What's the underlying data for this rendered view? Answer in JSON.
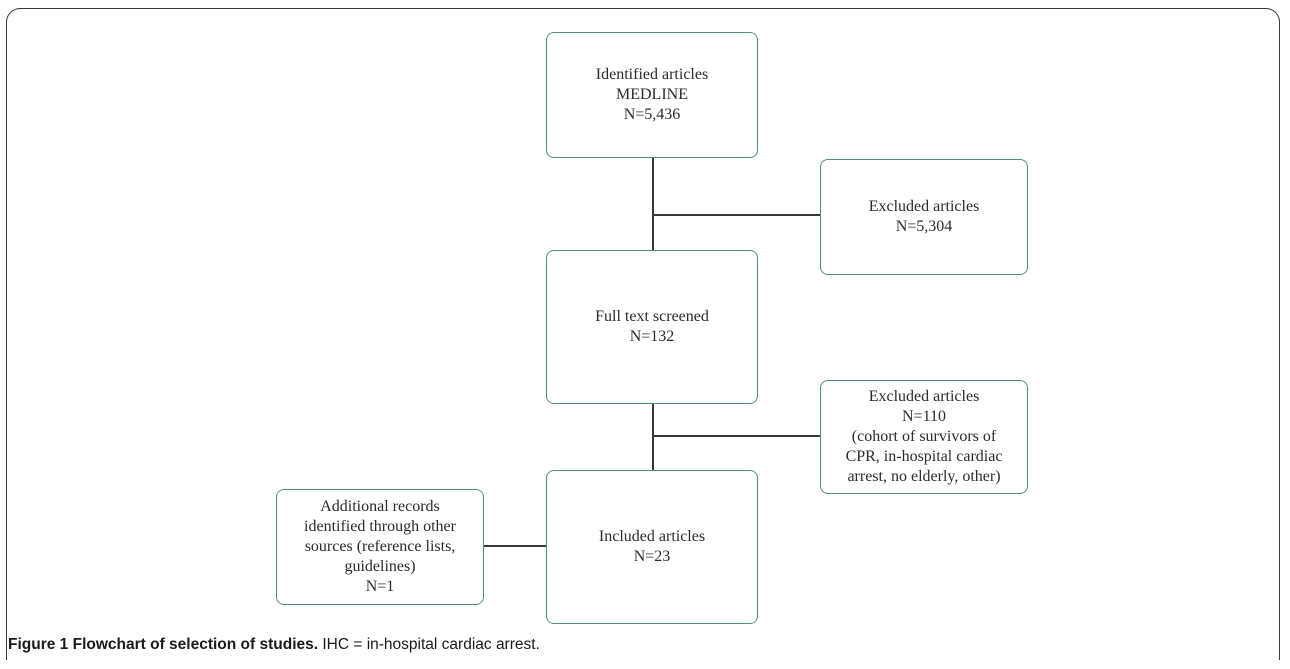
{
  "nodes": {
    "identified": {
      "line1": "Identified articles",
      "line2": "MEDLINE",
      "line3": "N=5,436"
    },
    "excluded1": {
      "line1": "Excluded articles",
      "line2": "N=5,304"
    },
    "fulltext": {
      "line1": "Full text screened",
      "line2": "N=132"
    },
    "excluded2": {
      "line1": "Excluded articles",
      "line2": "N=110",
      "line3": "(cohort of survivors of",
      "line4": "CPR, in-hospital cardiac",
      "line5": "arrest, no elderly, other)"
    },
    "included": {
      "line1": "Included articles",
      "line2": "N=23"
    },
    "additional": {
      "line1": "Additional records",
      "line2": "identified through other",
      "line3": "sources (reference lists,",
      "line4": "guidelines)",
      "line5": "N=1"
    }
  },
  "caption": {
    "label": "Figure 1 Flowchart of selection of studies.",
    "text": " IHC = in-hospital cardiac arrest."
  },
  "colors": {
    "box_border": "#4e9186",
    "connector": "#3a3a3a"
  }
}
